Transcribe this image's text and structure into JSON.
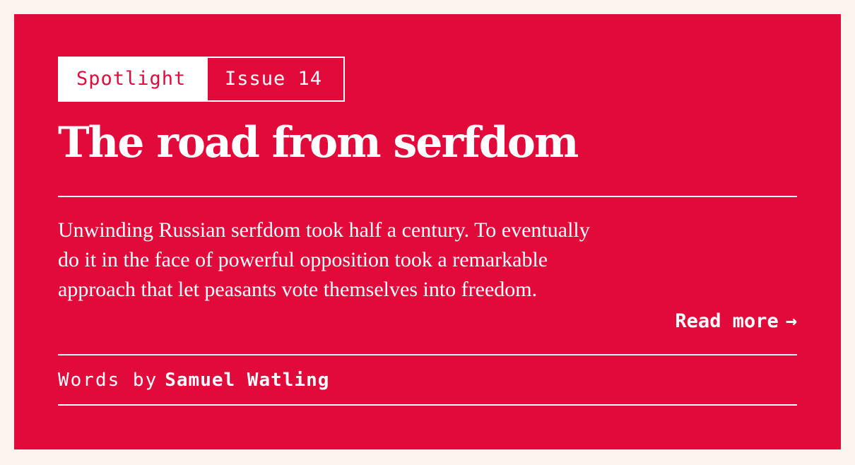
{
  "card": {
    "tags": {
      "primary": "Spotlight",
      "secondary": "Issue 14"
    },
    "title": "The road from serfdom",
    "summary": "Unwinding Russian serfdom took half a century. To eventually do it in the face of powerful opposition took a remarkable approach that let peasants vote themselves into freedom.",
    "read_more": {
      "label": "Read more",
      "arrow_icon": "→"
    },
    "byline": {
      "prefix": "Words by",
      "author": "Samuel Watling"
    }
  },
  "colors": {
    "card_background": "#e10a3a",
    "page_background": "#fdf4ef",
    "text": "#ffffff"
  }
}
